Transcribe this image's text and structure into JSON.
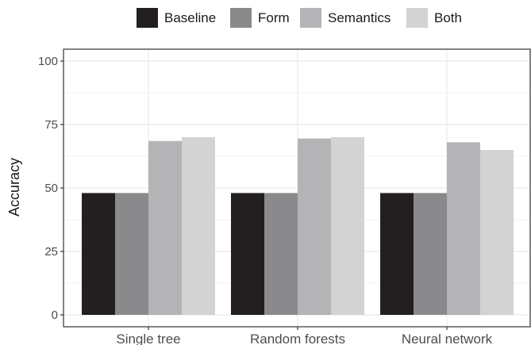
{
  "chart_data": {
    "type": "bar",
    "title": "",
    "xlabel": "",
    "ylabel": "Accuracy",
    "ylim": [
      0,
      100
    ],
    "yticks": [
      0,
      25,
      50,
      75,
      100
    ],
    "categories": [
      "Single tree",
      "Random forests",
      "Neural network"
    ],
    "series": [
      {
        "name": "Baseline",
        "values": [
          48,
          48,
          48
        ],
        "color": "#231f20"
      },
      {
        "name": "Form",
        "values": [
          48,
          48,
          48
        ],
        "color": "#8a8a8c"
      },
      {
        "name": "Semantics",
        "values": [
          68.5,
          69.5,
          68
        ],
        "color": "#b4b4b6"
      },
      {
        "name": "Both",
        "values": [
          70,
          70,
          65
        ],
        "color": "#d3d3d4"
      }
    ],
    "grid": true,
    "legend_position": "top"
  }
}
